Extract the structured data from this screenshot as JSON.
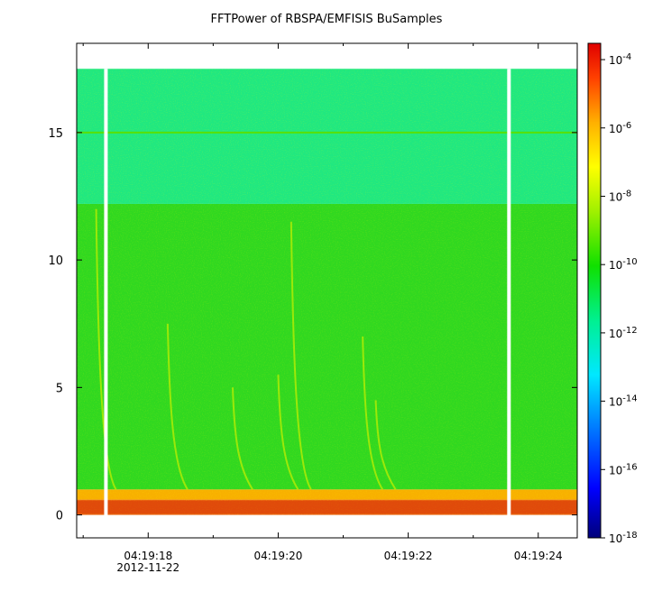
{
  "chart_data": {
    "type": "heatmap",
    "title": "FFTPower of RBSPA/EMFISIS  BuSamples",
    "x": {
      "ticks": [
        "04:19:18",
        "04:19:20",
        "04:19:22",
        "04:19:24"
      ],
      "tick_seconds": [
        18,
        20,
        22,
        24
      ],
      "range_seconds": [
        16.9,
        24.6
      ],
      "date_label": "2012-11-22",
      "minor_tick_seconds": [
        17,
        19,
        21,
        23
      ]
    },
    "y": {
      "ticks": [
        "0",
        "5",
        "10",
        "15"
      ],
      "tick_values": [
        0,
        5,
        10,
        15
      ],
      "range": [
        -0.9,
        18.5
      ],
      "data_max": 17.5
    },
    "colorbar": {
      "scale": "log",
      "range": [
        1e-18,
        0.0003
      ],
      "tick_bases": [
        "10",
        "10",
        "10",
        "10",
        "10",
        "10",
        "10",
        "10"
      ],
      "tick_exponents": [
        "-4",
        "-6",
        "-8",
        "-10",
        "-12",
        "-14",
        "-16",
        "-18"
      ],
      "tick_values": [
        0.0001,
        1e-06,
        1e-08,
        1e-10,
        1e-12,
        1e-14,
        1e-16,
        1e-18
      ]
    },
    "bands": [
      {
        "from": 0.0,
        "to": 0.6,
        "level": 1e-07,
        "color": "#e86010"
      },
      {
        "from": 0.6,
        "to": 1.0,
        "level": 1e-08,
        "color": "#f8b000"
      },
      {
        "from": 1.0,
        "to": 12.2,
        "level": 1e-10,
        "color": "#30d820"
      },
      {
        "from": 12.2,
        "to": 17.5,
        "level": 1e-12,
        "color": "#20e880"
      }
    ],
    "line_15": {
      "value": 15.0,
      "color": "#58e000"
    },
    "gaps_seconds": [
      17.35,
      23.55
    ],
    "whistlers": [
      {
        "t": 17.2,
        "f_top": 12.0
      },
      {
        "t": 18.3,
        "f_top": 7.5
      },
      {
        "t": 19.3,
        "f_top": 5.0
      },
      {
        "t": 20.0,
        "f_top": 5.5
      },
      {
        "t": 20.2,
        "f_top": 11.5
      },
      {
        "t": 21.3,
        "f_top": 7.0
      },
      {
        "t": 21.5,
        "f_top": 4.5
      }
    ]
  }
}
